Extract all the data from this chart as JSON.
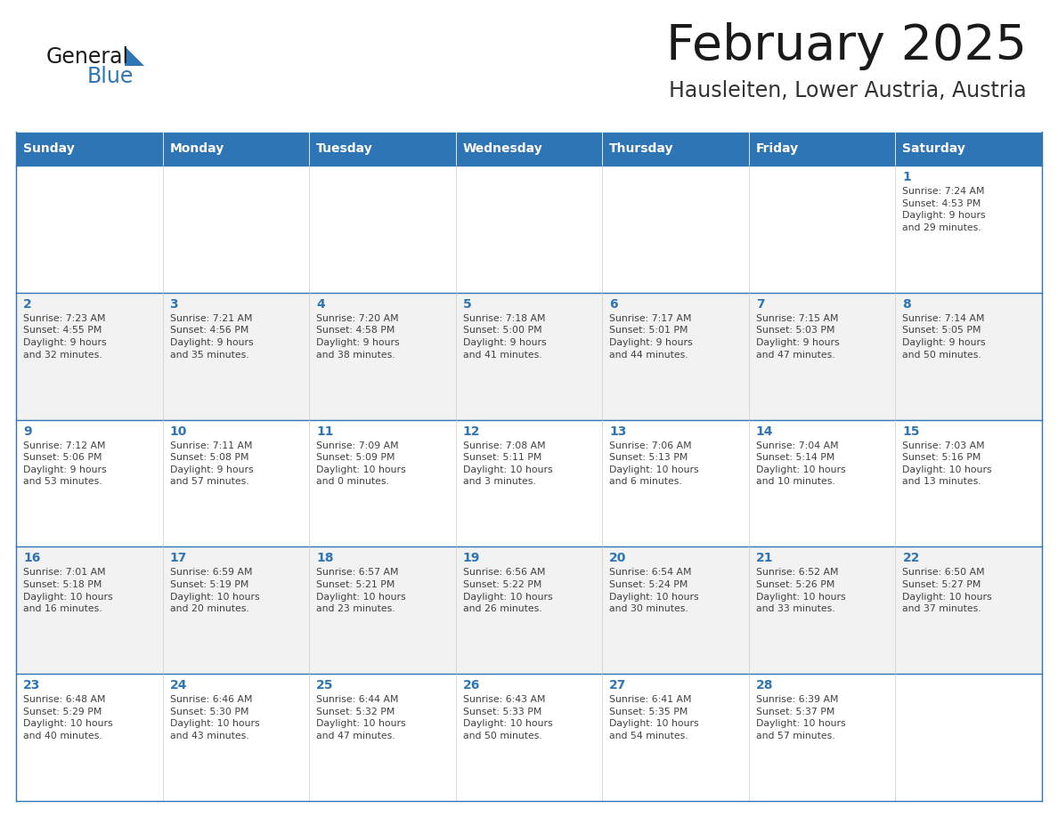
{
  "title": "February 2025",
  "subtitle": "Hausleiten, Lower Austria, Austria",
  "header_bg": "#2E75B6",
  "header_text_color": "#FFFFFF",
  "row_bg_light": "#F2F2F2",
  "row_bg_white": "#FFFFFF",
  "border_color": "#2E75B6",
  "title_color": "#1a1a1a",
  "subtitle_color": "#333333",
  "day_number_color": "#2E75B6",
  "text_color": "#404040",
  "logo_general_color": "#1a1a1a",
  "logo_blue_color": "#2E75B6",
  "logo_triangle_color": "#2E75B6",
  "days_of_week": [
    "Sunday",
    "Monday",
    "Tuesday",
    "Wednesday",
    "Thursday",
    "Friday",
    "Saturday"
  ],
  "weeks": [
    [
      {
        "day": null,
        "info": null
      },
      {
        "day": null,
        "info": null
      },
      {
        "day": null,
        "info": null
      },
      {
        "day": null,
        "info": null
      },
      {
        "day": null,
        "info": null
      },
      {
        "day": null,
        "info": null
      },
      {
        "day": 1,
        "info": "Sunrise: 7:24 AM\nSunset: 4:53 PM\nDaylight: 9 hours\nand 29 minutes."
      }
    ],
    [
      {
        "day": 2,
        "info": "Sunrise: 7:23 AM\nSunset: 4:55 PM\nDaylight: 9 hours\nand 32 minutes."
      },
      {
        "day": 3,
        "info": "Sunrise: 7:21 AM\nSunset: 4:56 PM\nDaylight: 9 hours\nand 35 minutes."
      },
      {
        "day": 4,
        "info": "Sunrise: 7:20 AM\nSunset: 4:58 PM\nDaylight: 9 hours\nand 38 minutes."
      },
      {
        "day": 5,
        "info": "Sunrise: 7:18 AM\nSunset: 5:00 PM\nDaylight: 9 hours\nand 41 minutes."
      },
      {
        "day": 6,
        "info": "Sunrise: 7:17 AM\nSunset: 5:01 PM\nDaylight: 9 hours\nand 44 minutes."
      },
      {
        "day": 7,
        "info": "Sunrise: 7:15 AM\nSunset: 5:03 PM\nDaylight: 9 hours\nand 47 minutes."
      },
      {
        "day": 8,
        "info": "Sunrise: 7:14 AM\nSunset: 5:05 PM\nDaylight: 9 hours\nand 50 minutes."
      }
    ],
    [
      {
        "day": 9,
        "info": "Sunrise: 7:12 AM\nSunset: 5:06 PM\nDaylight: 9 hours\nand 53 minutes."
      },
      {
        "day": 10,
        "info": "Sunrise: 7:11 AM\nSunset: 5:08 PM\nDaylight: 9 hours\nand 57 minutes."
      },
      {
        "day": 11,
        "info": "Sunrise: 7:09 AM\nSunset: 5:09 PM\nDaylight: 10 hours\nand 0 minutes."
      },
      {
        "day": 12,
        "info": "Sunrise: 7:08 AM\nSunset: 5:11 PM\nDaylight: 10 hours\nand 3 minutes."
      },
      {
        "day": 13,
        "info": "Sunrise: 7:06 AM\nSunset: 5:13 PM\nDaylight: 10 hours\nand 6 minutes."
      },
      {
        "day": 14,
        "info": "Sunrise: 7:04 AM\nSunset: 5:14 PM\nDaylight: 10 hours\nand 10 minutes."
      },
      {
        "day": 15,
        "info": "Sunrise: 7:03 AM\nSunset: 5:16 PM\nDaylight: 10 hours\nand 13 minutes."
      }
    ],
    [
      {
        "day": 16,
        "info": "Sunrise: 7:01 AM\nSunset: 5:18 PM\nDaylight: 10 hours\nand 16 minutes."
      },
      {
        "day": 17,
        "info": "Sunrise: 6:59 AM\nSunset: 5:19 PM\nDaylight: 10 hours\nand 20 minutes."
      },
      {
        "day": 18,
        "info": "Sunrise: 6:57 AM\nSunset: 5:21 PM\nDaylight: 10 hours\nand 23 minutes."
      },
      {
        "day": 19,
        "info": "Sunrise: 6:56 AM\nSunset: 5:22 PM\nDaylight: 10 hours\nand 26 minutes."
      },
      {
        "day": 20,
        "info": "Sunrise: 6:54 AM\nSunset: 5:24 PM\nDaylight: 10 hours\nand 30 minutes."
      },
      {
        "day": 21,
        "info": "Sunrise: 6:52 AM\nSunset: 5:26 PM\nDaylight: 10 hours\nand 33 minutes."
      },
      {
        "day": 22,
        "info": "Sunrise: 6:50 AM\nSunset: 5:27 PM\nDaylight: 10 hours\nand 37 minutes."
      }
    ],
    [
      {
        "day": 23,
        "info": "Sunrise: 6:48 AM\nSunset: 5:29 PM\nDaylight: 10 hours\nand 40 minutes."
      },
      {
        "day": 24,
        "info": "Sunrise: 6:46 AM\nSunset: 5:30 PM\nDaylight: 10 hours\nand 43 minutes."
      },
      {
        "day": 25,
        "info": "Sunrise: 6:44 AM\nSunset: 5:32 PM\nDaylight: 10 hours\nand 47 minutes."
      },
      {
        "day": 26,
        "info": "Sunrise: 6:43 AM\nSunset: 5:33 PM\nDaylight: 10 hours\nand 50 minutes."
      },
      {
        "day": 27,
        "info": "Sunrise: 6:41 AM\nSunset: 5:35 PM\nDaylight: 10 hours\nand 54 minutes."
      },
      {
        "day": 28,
        "info": "Sunrise: 6:39 AM\nSunset: 5:37 PM\nDaylight: 10 hours\nand 57 minutes."
      },
      {
        "day": null,
        "info": null
      }
    ]
  ]
}
